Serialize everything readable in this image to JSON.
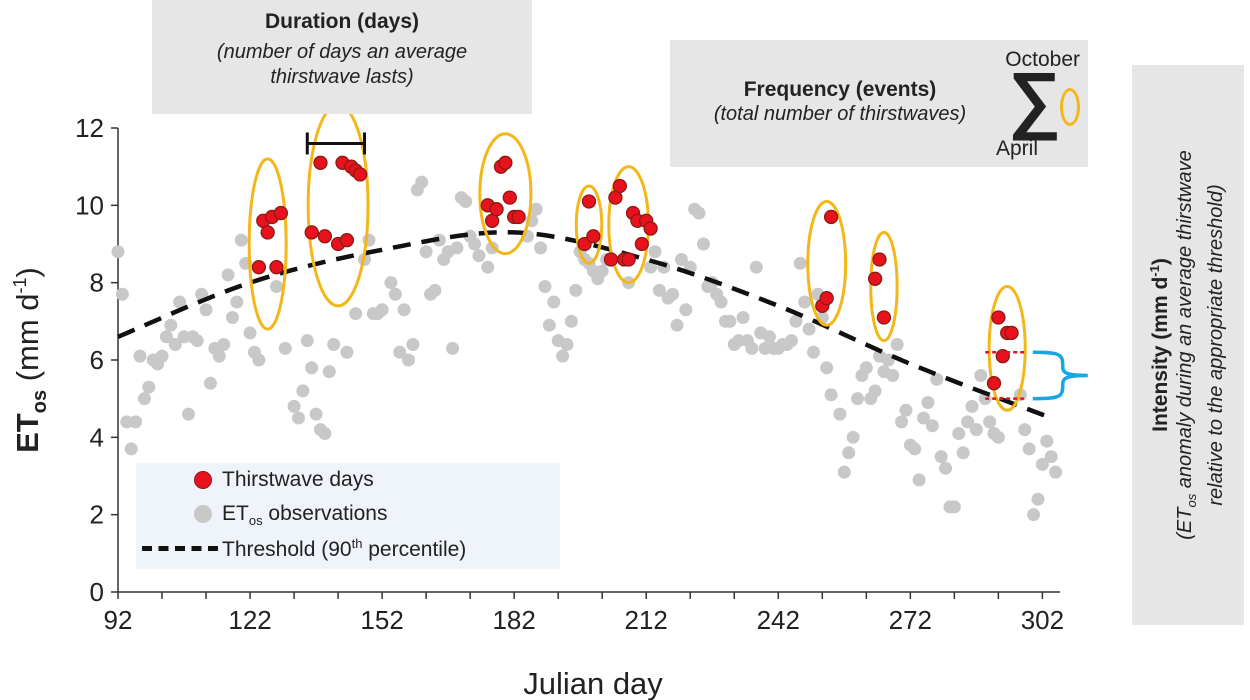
{
  "chart_data": {
    "type": "scatter",
    "xlabel": "Julian day",
    "ylabel": "ET",
    "ylabel_sub": "os",
    "ylabel_units": " (mm d",
    "ylabel_units_sup": "-1",
    "ylabel_units_end": ")",
    "xlim": [
      92,
      306
    ],
    "ylim": [
      0,
      12
    ],
    "x_ticks": [
      92,
      122,
      152,
      182,
      212,
      242,
      272,
      302
    ],
    "y_ticks": [
      0,
      2,
      4,
      6,
      8,
      10,
      12
    ],
    "grid": false,
    "legend_position": "bottom-left",
    "series": [
      {
        "name": "ETos observations",
        "color": "#c8c8c8",
        "points": [
          [
            92,
            8.8
          ],
          [
            93,
            7.7
          ],
          [
            94,
            4.4
          ],
          [
            95,
            3.7
          ],
          [
            96,
            4.4
          ],
          [
            97,
            6.1
          ],
          [
            98,
            5.0
          ],
          [
            99,
            5.3
          ],
          [
            100,
            6.0
          ],
          [
            101,
            5.9
          ],
          [
            102,
            6.1
          ],
          [
            103,
            6.6
          ],
          [
            104,
            6.9
          ],
          [
            105,
            6.4
          ],
          [
            106,
            7.5
          ],
          [
            107,
            6.6
          ],
          [
            108,
            4.6
          ],
          [
            109,
            6.6
          ],
          [
            110,
            6.5
          ],
          [
            111,
            7.7
          ],
          [
            112,
            7.3
          ],
          [
            113,
            5.4
          ],
          [
            114,
            6.3
          ],
          [
            115,
            6.1
          ],
          [
            116,
            6.4
          ],
          [
            117,
            8.2
          ],
          [
            118,
            7.1
          ],
          [
            119,
            7.5
          ],
          [
            120,
            9.1
          ],
          [
            121,
            8.5
          ],
          [
            122,
            6.7
          ],
          [
            123,
            6.2
          ],
          [
            124,
            6.0
          ],
          [
            128,
            7.9
          ],
          [
            130,
            6.3
          ],
          [
            132,
            4.8
          ],
          [
            133,
            4.5
          ],
          [
            134,
            5.2
          ],
          [
            135,
            6.5
          ],
          [
            136,
            5.8
          ],
          [
            137,
            4.6
          ],
          [
            138,
            4.2
          ],
          [
            139,
            4.1
          ],
          [
            140,
            5.7
          ],
          [
            141,
            6.4
          ],
          [
            144,
            6.2
          ],
          [
            146,
            7.2
          ],
          [
            148,
            8.6
          ],
          [
            149,
            9.1
          ],
          [
            150,
            7.2
          ],
          [
            151,
            7.2
          ],
          [
            152,
            7.3
          ],
          [
            154,
            8.0
          ],
          [
            155,
            7.7
          ],
          [
            156,
            6.2
          ],
          [
            157,
            7.3
          ],
          [
            158,
            6.0
          ],
          [
            159,
            6.4
          ],
          [
            160,
            10.4
          ],
          [
            161,
            10.6
          ],
          [
            162,
            8.8
          ],
          [
            163,
            7.7
          ],
          [
            164,
            7.8
          ],
          [
            165,
            9.1
          ],
          [
            166,
            8.6
          ],
          [
            167,
            8.8
          ],
          [
            168,
            6.3
          ],
          [
            169,
            8.9
          ],
          [
            170,
            10.2
          ],
          [
            171,
            10.1
          ],
          [
            172,
            9.2
          ],
          [
            173,
            9.0
          ],
          [
            174,
            8.7
          ],
          [
            176,
            8.4
          ],
          [
            177,
            8.9
          ],
          [
            185,
            9.2
          ],
          [
            186,
            9.6
          ],
          [
            187,
            9.9
          ],
          [
            188,
            8.9
          ],
          [
            189,
            7.9
          ],
          [
            190,
            6.9
          ],
          [
            191,
            7.5
          ],
          [
            192,
            6.5
          ],
          [
            193,
            6.1
          ],
          [
            194,
            6.4
          ],
          [
            195,
            7.0
          ],
          [
            196,
            7.8
          ],
          [
            197,
            8.8
          ],
          [
            198,
            8.6
          ],
          [
            199,
            8.5
          ],
          [
            200,
            8.3
          ],
          [
            201,
            8.1
          ],
          [
            202,
            8.3
          ],
          [
            203,
            8.6
          ],
          [
            208,
            8.0
          ],
          [
            213,
            8.4
          ],
          [
            214,
            8.8
          ],
          [
            215,
            7.8
          ],
          [
            216,
            8.4
          ],
          [
            217,
            7.6
          ],
          [
            218,
            7.7
          ],
          [
            219,
            6.9
          ],
          [
            220,
            8.6
          ],
          [
            221,
            7.3
          ],
          [
            222,
            8.4
          ],
          [
            223,
            9.9
          ],
          [
            224,
            9.8
          ],
          [
            225,
            9.0
          ],
          [
            226,
            7.9
          ],
          [
            227,
            8.0
          ],
          [
            228,
            7.7
          ],
          [
            229,
            7.5
          ],
          [
            230,
            7.0
          ],
          [
            231,
            7.0
          ],
          [
            232,
            6.4
          ],
          [
            233,
            6.5
          ],
          [
            234,
            7.1
          ],
          [
            235,
            6.5
          ],
          [
            236,
            6.3
          ],
          [
            237,
            8.4
          ],
          [
            238,
            6.7
          ],
          [
            239,
            6.3
          ],
          [
            240,
            6.6
          ],
          [
            241,
            6.3
          ],
          [
            242,
            6.3
          ],
          [
            243,
            6.4
          ],
          [
            244,
            6.4
          ],
          [
            245,
            6.5
          ],
          [
            246,
            7.0
          ],
          [
            247,
            8.5
          ],
          [
            248,
            7.5
          ],
          [
            249,
            6.8
          ],
          [
            250,
            6.2
          ],
          [
            251,
            7.7
          ],
          [
            252,
            7.1
          ],
          [
            253,
            5.8
          ],
          [
            254,
            5.1
          ],
          [
            256,
            4.6
          ],
          [
            257,
            3.1
          ],
          [
            258,
            3.6
          ],
          [
            259,
            4.0
          ],
          [
            260,
            5.0
          ],
          [
            261,
            5.6
          ],
          [
            262,
            5.8
          ],
          [
            263,
            5.0
          ],
          [
            264,
            5.2
          ],
          [
            265,
            6.1
          ],
          [
            266,
            5.7
          ],
          [
            267,
            6.0
          ],
          [
            268,
            5.6
          ],
          [
            269,
            6.4
          ],
          [
            270,
            4.4
          ],
          [
            271,
            4.7
          ],
          [
            272,
            3.8
          ],
          [
            273,
            3.7
          ],
          [
            274,
            2.9
          ],
          [
            275,
            4.5
          ],
          [
            276,
            4.9
          ],
          [
            277,
            4.3
          ],
          [
            278,
            5.5
          ],
          [
            279,
            3.5
          ],
          [
            280,
            3.2
          ],
          [
            281,
            2.2
          ],
          [
            282,
            2.2
          ],
          [
            283,
            4.1
          ],
          [
            284,
            3.6
          ],
          [
            285,
            4.4
          ],
          [
            286,
            4.8
          ],
          [
            287,
            4.2
          ],
          [
            288,
            5.6
          ],
          [
            289,
            5.0
          ],
          [
            290,
            4.4
          ],
          [
            291,
            4.1
          ],
          [
            292,
            4.0
          ],
          [
            297,
            5.1
          ],
          [
            298,
            4.2
          ],
          [
            299,
            3.7
          ],
          [
            300,
            2.0
          ],
          [
            301,
            2.4
          ],
          [
            302,
            3.3
          ],
          [
            303,
            3.9
          ],
          [
            304,
            3.5
          ],
          [
            305,
            3.1
          ]
        ]
      },
      {
        "name": "Thirstwave days",
        "color": "#e8121e",
        "points": [
          [
            124,
            8.4
          ],
          [
            125,
            9.6
          ],
          [
            126,
            9.3
          ],
          [
            127,
            9.7
          ],
          [
            128,
            8.4
          ],
          [
            129,
            9.8
          ],
          [
            136,
            9.3
          ],
          [
            138,
            11.1
          ],
          [
            139,
            9.2
          ],
          [
            142,
            9.0
          ],
          [
            143,
            11.1
          ],
          [
            144,
            9.1
          ],
          [
            145,
            11.0
          ],
          [
            146,
            10.9
          ],
          [
            147,
            10.8
          ],
          [
            176,
            10.0
          ],
          [
            177,
            9.6
          ],
          [
            178,
            9.9
          ],
          [
            179,
            11.0
          ],
          [
            180,
            11.1
          ],
          [
            181,
            10.2
          ],
          [
            182,
            9.7
          ],
          [
            183,
            9.7
          ],
          [
            198,
            9.0
          ],
          [
            199,
            10.1
          ],
          [
            200,
            9.2
          ],
          [
            204,
            8.6
          ],
          [
            205,
            10.2
          ],
          [
            206,
            10.5
          ],
          [
            207,
            8.6
          ],
          [
            208,
            8.6
          ],
          [
            209,
            9.8
          ],
          [
            210,
            9.6
          ],
          [
            211,
            9.0
          ],
          [
            212,
            9.6
          ],
          [
            213,
            9.4
          ],
          [
            252,
            7.4
          ],
          [
            253,
            7.6
          ],
          [
            254,
            9.7
          ],
          [
            264,
            8.1
          ],
          [
            265,
            8.6
          ],
          [
            266,
            7.1
          ],
          [
            291,
            5.4
          ],
          [
            292,
            7.1
          ],
          [
            293,
            6.1
          ],
          [
            294,
            6.7
          ],
          [
            295,
            6.7
          ]
        ]
      },
      {
        "name": "Threshold (90th percentile)",
        "color": "#111111",
        "points": [
          [
            92,
            6.6
          ],
          [
            122,
            8.0
          ],
          [
            152,
            8.85
          ],
          [
            182,
            9.3
          ],
          [
            212,
            8.6
          ],
          [
            242,
            7.4
          ],
          [
            272,
            5.9
          ],
          [
            304,
            4.5
          ]
        ]
      }
    ],
    "events": [
      {
        "x": 126,
        "y": 9.0,
        "rx": 4.2,
        "ry": 2.2
      },
      {
        "x": 142,
        "y": 10.0,
        "rx": 6.8,
        "ry": 2.6
      },
      {
        "x": 180,
        "y": 10.3,
        "rx": 5.8,
        "ry": 1.55
      },
      {
        "x": 199,
        "y": 9.5,
        "rx": 2.9,
        "ry": 1.0
      },
      {
        "x": 208,
        "y": 9.5,
        "rx": 4.5,
        "ry": 1.5
      },
      {
        "x": 253,
        "y": 8.5,
        "rx": 4.3,
        "ry": 1.6
      },
      {
        "x": 266,
        "y": 7.9,
        "rx": 3.0,
        "ry": 1.4
      },
      {
        "x": 294,
        "y": 6.3,
        "rx": 4.1,
        "ry": 1.6
      }
    ],
    "intensity_bracket": {
      "x_start": 289,
      "x_end": 298,
      "y_high": 6.2,
      "y_low": 5.0
    },
    "duration_bar": {
      "x_start": 135,
      "x_end": 148,
      "y": 11.6
    },
    "ellipse_color": "#f3b719",
    "bracket_color": "#19a7e3",
    "marker_edge_color": "#8a1a14"
  },
  "annotations": {
    "duration_title": "Duration (days)",
    "duration_desc": "(number of days an average thirstwave lasts)",
    "frequency_title": "Frequency (events)",
    "frequency_desc": "(total number of thirstwaves)",
    "sum_top": "October",
    "sum_bottom": "April",
    "sum_symbol": "∑",
    "intensity_title": "Intensity (mm d",
    "intensity_title_sup": "-1",
    "intensity_title_end": ")",
    "intensity_desc_1": "(ET",
    "intensity_desc_sub": "os",
    "intensity_desc_2": " anomaly during an average thirstwave",
    "intensity_desc_3": "relative to the appropriate threshold)"
  },
  "legend": {
    "thirstwave": "Thirstwave days",
    "obs_prefix": "ET",
    "obs_sub": "os",
    "obs_suffix": " observations",
    "threshold_prefix": "Threshold (90",
    "threshold_sup": "th",
    "threshold_suffix": " percentile)"
  }
}
